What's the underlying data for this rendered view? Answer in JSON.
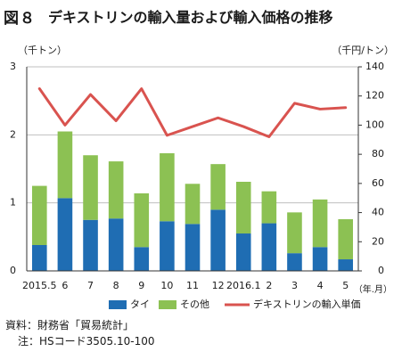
{
  "figure_label": "図８",
  "title": "デキストリンの輸入量および輸入価格の推移",
  "notes": {
    "source": "資料：財務省「貿易統計」",
    "note": "注：HSコード3505.10-100"
  },
  "colors": {
    "thai": "#1f6db3",
    "other": "#8cc153",
    "price": "#d9534f",
    "axis": "#333333",
    "grid": "#bfbfbf"
  },
  "chart_data": {
    "type": "bar+line",
    "categories": [
      "2015.5",
      "6",
      "7",
      "8",
      "9",
      "10",
      "11",
      "12",
      "2016.1",
      "2",
      "3",
      "4",
      "5"
    ],
    "x_unit_label": "（年.月）",
    "left_axis": {
      "unit_label": "（千トン）",
      "ylim": [
        0,
        3
      ],
      "ticks": [
        "0",
        "1",
        "2",
        "3"
      ]
    },
    "right_axis": {
      "unit_label": "（千円/トン）",
      "ylim": [
        0,
        140
      ],
      "ticks": [
        "0",
        "20",
        "40",
        "60",
        "80",
        "100",
        "120",
        "140"
      ]
    },
    "series": [
      {
        "name": "タイ",
        "kind": "stacked-bar",
        "axis": "left",
        "values": [
          0.38,
          1.07,
          0.75,
          0.77,
          0.35,
          0.73,
          0.69,
          0.9,
          0.55,
          0.7,
          0.26,
          0.35,
          0.17
        ]
      },
      {
        "name": "その他",
        "kind": "stacked-bar",
        "axis": "left",
        "values": [
          0.87,
          0.98,
          0.95,
          0.84,
          0.79,
          1.0,
          0.59,
          0.67,
          0.76,
          0.47,
          0.6,
          0.7,
          0.59
        ]
      },
      {
        "name": "デキストリンの輸入単価",
        "kind": "line",
        "axis": "right",
        "values": [
          125,
          100,
          121,
          103,
          125,
          93,
          99,
          105,
          99,
          92,
          115,
          111,
          112
        ]
      }
    ],
    "grid": true,
    "legend_position": "bottom"
  }
}
